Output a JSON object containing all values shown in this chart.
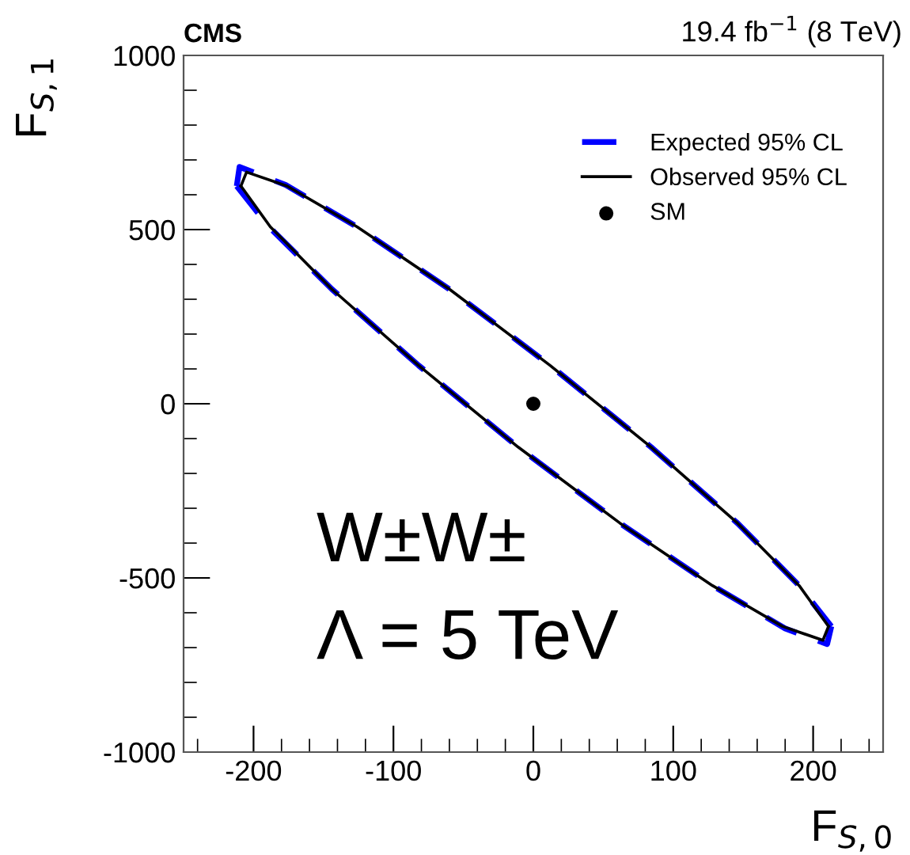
{
  "chart_data": {
    "type": "line",
    "title": "CMS",
    "subtitle": "19.4 fb$^{−1}$ (8 TeV)",
    "xlabel": "F$_{S,0}$",
    "ylabel": "F$_{S,1}$",
    "annotations": [
      "W±W±",
      "Λ = 5 TeV"
    ],
    "xlim": [
      -250,
      250
    ],
    "ylim": [
      -1000,
      1000
    ],
    "xticks": [
      {
        "value": -240,
        "label": null
      },
      -200,
      {
        "value": -180,
        "label": null
      },
      {
        "value": -160,
        "label": null
      },
      {
        "value": -140,
        "label": null
      },
      {
        "value": -120,
        "label": null
      },
      -100,
      {
        "value": -80,
        "label": null
      },
      {
        "value": -60,
        "label": null
      },
      {
        "value": -40,
        "label": null
      },
      {
        "value": -20,
        "label": null
      },
      0,
      {
        "value": 20,
        "label": null
      },
      {
        "value": 40,
        "label": null
      },
      {
        "value": 60,
        "label": null
      },
      {
        "value": 80,
        "label": null
      },
      100,
      {
        "value": 120,
        "label": null
      },
      {
        "value": 140,
        "label": null
      },
      {
        "value": 160,
        "label": null
      },
      {
        "value": 180,
        "label": null
      },
      200,
      {
        "value": 220,
        "label": null
      },
      {
        "value": 240,
        "label": null
      }
    ],
    "yticks": [
      -1000,
      {
        "value": -900,
        "label": null
      },
      {
        "value": -800,
        "label": null
      },
      {
        "value": -700,
        "label": null
      },
      {
        "value": -600,
        "label": null
      },
      -500,
      {
        "value": -400,
        "label": null
      },
      {
        "value": -300,
        "label": null
      },
      {
        "value": -200,
        "label": null
      },
      {
        "value": -100,
        "label": null
      },
      0,
      {
        "value": 100,
        "label": null
      },
      {
        "value": 200,
        "label": null
      },
      {
        "value": 300,
        "label": null
      },
      {
        "value": 400,
        "label": null
      },
      500,
      {
        "value": 600,
        "label": null
      },
      {
        "value": 700,
        "label": null
      },
      {
        "value": 800,
        "label": null
      },
      {
        "value": 900,
        "label": null
      },
      1000
    ],
    "grid": false,
    "legend": "top right",
    "series": [
      {
        "name": "Expected 95% CL",
        "line_style": "dashed",
        "color": "#0000ff",
        "x": [
          -212,
          -210,
          -177,
          -126,
          -60,
          12,
          84,
          146,
          190,
          213
        ],
        "values": [
          625,
          680,
          628,
          508,
          329,
          110,
          -124,
          -343,
          -522,
          -639
        ]
      },
      {
        "line_style": "dashed",
        "color": "#0000ff",
        "x": [
          -212,
          -189,
          -144,
          -82,
          -11,
          62,
          128,
          180,
          210,
          213
        ],
        "values": [
          625,
          508,
          329,
          110,
          -124,
          -343,
          -522,
          -645,
          -690,
          -639
        ]
      },
      {
        "name": "Observed 95% CL",
        "line_style": "solid",
        "color": "#000000",
        "x": [
          -209,
          -205,
          -176,
          -126,
          -60,
          12,
          84,
          146,
          190,
          211
        ],
        "values": [
          625,
          665,
          625,
          508,
          329,
          110,
          -124,
          -343,
          -522,
          -639
        ]
      },
      {
        "line_style": "solid",
        "color": "#000000",
        "x": [
          -209,
          -188,
          -144,
          -82,
          -11,
          62,
          128,
          178,
          207,
          211
        ],
        "values": [
          625,
          508,
          329,
          110,
          -124,
          -343,
          -522,
          -639,
          -679,
          -639
        ]
      },
      {
        "name": "SM",
        "type": "scatter",
        "marker": "circle",
        "color": "#000000",
        "x": [
          0
        ],
        "values": [
          0
        ]
      }
    ]
  }
}
